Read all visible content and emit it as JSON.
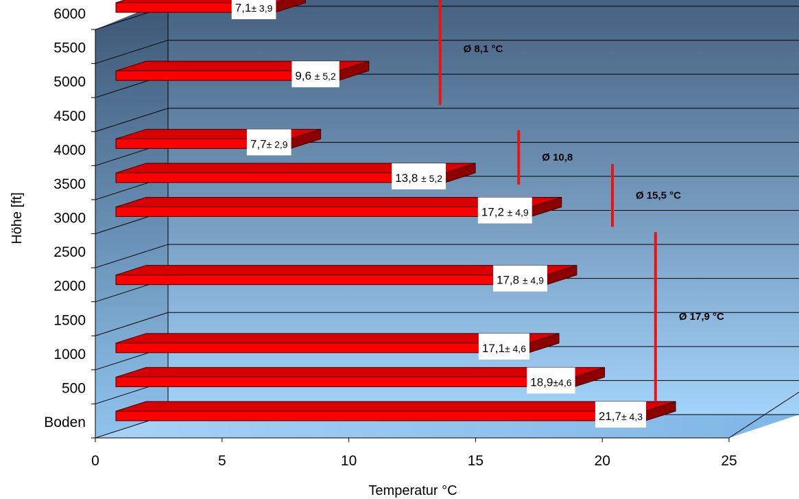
{
  "chart_data": {
    "type": "bar",
    "orientation": "horizontal",
    "three_d": true,
    "xlabel": "Temperatur °C",
    "ylabel": "Höhe [ft]",
    "xlim": [
      0,
      25
    ],
    "x_ticks": [
      "0",
      "5",
      "10",
      "15",
      "20",
      "25"
    ],
    "y_ticks": [
      "Boden",
      "500",
      "1000",
      "1500",
      "2000",
      "2500",
      "3000",
      "3500",
      "4000",
      "4500",
      "5000",
      "5500",
      "6000"
    ],
    "grid": true,
    "bar_color": "#ff0000",
    "background_gradient": [
      "#a3d3fa",
      "#466180"
    ],
    "bars": [
      {
        "altitude": 0,
        "value": 21.7,
        "label": "21,7",
        "error": "± 4,3"
      },
      {
        "altitude": 500,
        "value": 18.9,
        "label": "18,9",
        "error": "±4,6"
      },
      {
        "altitude": 1000,
        "value": 17.1,
        "label": "17,1",
        "error": "± 4,6"
      },
      {
        "altitude": 2000,
        "value": 17.8,
        "label": "17,8 ",
        "error": "± 4,9"
      },
      {
        "altitude": 3000,
        "value": 17.2,
        "label": "17,2 ",
        "error": "± 4,9"
      },
      {
        "altitude": 3500,
        "value": 13.8,
        "label": "13,8 ",
        "error": "± 5,2"
      },
      {
        "altitude": 4000,
        "value": 7.7,
        "label": "7,7",
        "error": "± 2,9"
      },
      {
        "altitude": 5000,
        "value": 9.6,
        "label": "9,6 ",
        "error": "± 5,2"
      },
      {
        "altitude": 6000,
        "value": 7.1,
        "label": "7,1",
        "error": "± 3,9"
      }
    ],
    "averages": [
      {
        "text": "Ø 17,9 °C",
        "x": 22.1,
        "y_from": 220,
        "y_to": 2700
      },
      {
        "text": "Ø 15,5 °C",
        "x": 20.4,
        "y_from": 2780,
        "y_to": 3700
      },
      {
        "text": "Ø 10,8",
        "x": 16.7,
        "y_from": 3400,
        "y_to": 4200
      },
      {
        "text": "Ø 8,1 °C",
        "x": 13.6,
        "y_from": 4570,
        "y_to": 6220
      }
    ],
    "average_line_color": "#ee1111"
  }
}
